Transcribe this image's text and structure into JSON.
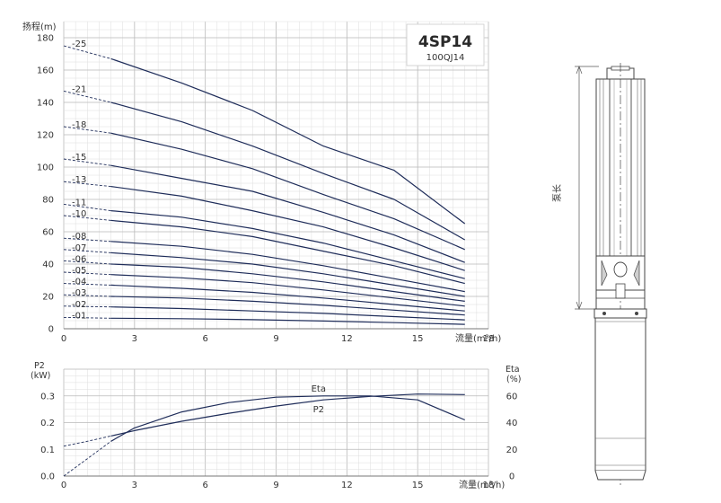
{
  "model_box": {
    "title": "4SP14",
    "subtitle": "100QJ14"
  },
  "pump_drawing": {
    "length_label": "泵长"
  },
  "colors": {
    "curve": "#1f2d5a",
    "grid_major": "#b9b9b9",
    "grid_minor": "#dedede",
    "text": "#333333"
  },
  "chart_data": [
    {
      "type": "line",
      "ylabel": "扬程(m)",
      "xlabel": "流量(m³/h)",
      "xlim": [
        0,
        18
      ],
      "ylim": [
        0,
        180
      ],
      "x_ticks": [
        0,
        3,
        6,
        9,
        12,
        15,
        18
      ],
      "y_ticks": [
        0,
        20,
        40,
        60,
        80,
        100,
        120,
        140,
        160,
        180
      ],
      "grid": true,
      "dashed_x_end": 2,
      "series": [
        {
          "name": "-25",
          "x": [
            0,
            2,
            5,
            8,
            11,
            14,
            17
          ],
          "y": [
            175,
            167,
            152,
            135,
            113,
            98,
            65
          ]
        },
        {
          "name": "-21",
          "x": [
            0,
            2,
            5,
            8,
            11,
            14,
            17
          ],
          "y": [
            147,
            140,
            128,
            113,
            96,
            80,
            55
          ]
        },
        {
          "name": "-18",
          "x": [
            0,
            2,
            5,
            8,
            11,
            14,
            17
          ],
          "y": [
            125,
            121,
            111,
            99,
            83,
            68,
            49
          ]
        },
        {
          "name": "-15",
          "x": [
            0,
            2,
            5,
            8,
            11,
            14,
            17
          ],
          "y": [
            105,
            101,
            93,
            85,
            72,
            58,
            41
          ]
        },
        {
          "name": "-13",
          "x": [
            0,
            2,
            5,
            8,
            11,
            14,
            17
          ],
          "y": [
            91,
            88,
            82,
            73,
            63,
            50,
            36
          ]
        },
        {
          "name": "-11",
          "x": [
            0,
            2,
            5,
            8,
            11,
            14,
            17
          ],
          "y": [
            77,
            73,
            69,
            62,
            53,
            42,
            31
          ]
        },
        {
          "name": "-10",
          "x": [
            0,
            2,
            5,
            8,
            11,
            14,
            17
          ],
          "y": [
            70,
            67,
            63,
            57,
            48,
            39,
            28
          ]
        },
        {
          "name": "-08",
          "x": [
            0,
            2,
            5,
            8,
            11,
            14,
            17
          ],
          "y": [
            56,
            54,
            51,
            46,
            39,
            31,
            23
          ]
        },
        {
          "name": "-07",
          "x": [
            0,
            2,
            5,
            8,
            11,
            14,
            17
          ],
          "y": [
            49,
            47,
            44,
            40,
            34,
            27,
            20
          ]
        },
        {
          "name": "-06",
          "x": [
            0,
            2,
            5,
            8,
            11,
            14,
            17
          ],
          "y": [
            42,
            40,
            38,
            34,
            29,
            23,
            17
          ]
        },
        {
          "name": "-05",
          "x": [
            0,
            2,
            5,
            8,
            11,
            14,
            17
          ],
          "y": [
            35,
            33.5,
            31.5,
            28.5,
            24,
            19,
            14
          ]
        },
        {
          "name": "-04",
          "x": [
            0,
            2,
            5,
            8,
            11,
            14,
            17
          ],
          "y": [
            28,
            27,
            25,
            22.5,
            19,
            15,
            11
          ]
        },
        {
          "name": "-03",
          "x": [
            0,
            2,
            5,
            8,
            11,
            14,
            17
          ],
          "y": [
            21,
            20,
            19,
            17,
            14.5,
            11.5,
            8.5
          ]
        },
        {
          "name": "-02",
          "x": [
            0,
            2,
            5,
            8,
            11,
            14,
            17
          ],
          "y": [
            14,
            13.5,
            12.5,
            11,
            9.5,
            7.5,
            5.5
          ]
        },
        {
          "name": "-01",
          "x": [
            0,
            2,
            5,
            8,
            11,
            14,
            17
          ],
          "y": [
            7,
            6.5,
            6.2,
            5.6,
            4.8,
            3.8,
            2.7
          ]
        }
      ]
    },
    {
      "type": "line",
      "ylabel": "P2\n(kW)",
      "y2label": "Eta\n(%)",
      "xlabel": "流量(m³/h)",
      "xlim": [
        0,
        18
      ],
      "ylim": [
        0,
        0.4
      ],
      "y2lim": [
        0,
        80
      ],
      "x_ticks": [
        0,
        3,
        6,
        9,
        12,
        15,
        18
      ],
      "y_ticks": [
        0.0,
        0.1,
        0.2,
        0.3
      ],
      "y_tick_labels": [
        "0.0",
        "0.1",
        "0.2",
        "0.3"
      ],
      "y2_ticks": [
        0,
        20,
        40,
        60
      ],
      "grid": true,
      "series": [
        {
          "name": "Eta",
          "axis": "right",
          "x": [
            0,
            1,
            2,
            3,
            5,
            7,
            9,
            11,
            13,
            15,
            17
          ],
          "y": [
            0,
            13,
            26,
            36,
            48,
            55,
            59,
            60,
            60,
            57,
            42
          ],
          "dashed_x_end": 2
        },
        {
          "name": "P2",
          "axis": "left",
          "x": [
            0,
            1,
            2,
            3,
            5,
            7,
            9,
            11,
            13,
            15,
            17
          ],
          "y": [
            0.112,
            0.13,
            0.15,
            0.17,
            0.205,
            0.235,
            0.262,
            0.285,
            0.298,
            0.307,
            0.305
          ],
          "dashed_x_end": 2
        }
      ]
    }
  ]
}
